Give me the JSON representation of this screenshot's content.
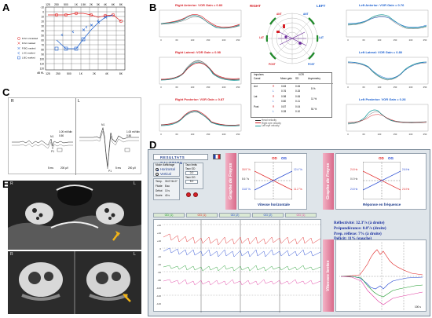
{
  "letters": {
    "a": "A",
    "b": "B",
    "c": "C",
    "d": "D",
    "e": "E"
  },
  "panel_a": {
    "freq_top": [
      "125",
      "250",
      "500",
      "1K",
      "1.5K",
      "2K",
      "3K",
      "4K",
      "6K",
      "8K"
    ],
    "freq_bottom": [
      "125",
      "250",
      "500",
      "1K",
      "2K",
      "4K",
      "8K"
    ],
    "db_left": [
      "-10",
      "0",
      "10",
      "20",
      "30",
      "40",
      "50",
      "60",
      "70",
      "80",
      "90",
      "100",
      "110",
      "120"
    ],
    "db_unit": "dB HL",
    "legend": [
      "R AC unmasked",
      "R AC masked",
      "R BC masked",
      "L AC masked",
      "L BC masked"
    ],
    "colors": {
      "right": "#e02020",
      "left": "#1a5fd0"
    }
  },
  "panel_b": {
    "right_anterior": "Right Anterior: VOR Gain = 0.83",
    "right_lateral": "Right Lateral: VOR Gain = 0.98",
    "right_posterior": "Right Posterior: VOR Gain = 0.87",
    "left_anterior": "Left Anterior: VOR Gain = 0.76",
    "left_lateral": "Left Lateral: VOR Gain = 0.80",
    "left_posterior": "Left Posterior: VOR Gain = 0.28",
    "right_word": "RIGHT",
    "left_word": "LEFT",
    "dial_labels": {
      "ant_l": "ANT",
      "ant_r": "ANT",
      "lat_l": "LAT",
      "lat_r": "LAT",
      "post_l": "POST",
      "post_r": "POST"
    },
    "table_header": [
      "Impulses",
      "VOR"
    ],
    "table_subheader": [
      "Canal",
      "Mean gain",
      "SD",
      "Asymmetry"
    ],
    "table_rows": [
      [
        "Ant",
        "R",
        "0.83",
        "0.06",
        ""
      ],
      [
        "",
        "L",
        "0.76",
        "0.15",
        "5 %"
      ],
      [
        "Lat",
        "R",
        "0.98",
        "0.06",
        ""
      ],
      [
        "",
        "L",
        "0.80",
        "0.11",
        "11 %"
      ],
      [
        "Post",
        "R",
        "0.87",
        "0.04",
        ""
      ],
      [
        "",
        "L",
        "0.28",
        "0.10",
        "51 %"
      ]
    ],
    "table_legend": [
      "Head velocity",
      "Right eye velocity",
      "Left eye velocity"
    ],
    "x_ticks": [
      "0",
      "60",
      "100",
      "150",
      "200",
      "250"
    ]
  },
  "panel_c": {
    "left_label": "R",
    "right_label": "L",
    "wave_labels": [
      "N1",
      "P1"
    ],
    "scale_left": "5 ms",
    "scale_right": "200 µV",
    "scale_left2": "5 ms",
    "scale_right2": "200 µV",
    "side_values_left": [
      "1.00 mV/div",
      "0.50"
    ],
    "side_values_right": [
      "1.00 mV/div",
      "0.50"
    ]
  },
  "panel_d": {
    "window_title": "RESULTATS CALORIQU",
    "mode_label": "Mode d'affichage",
    "mode_options": [
      "Horizontal",
      "Vertical"
    ],
    "temp_label": "Temp.",
    "temp_value": "30.0°/44.0°",
    "fluide_label": "Fluide",
    "fluide_value": "Eau",
    "debut_label": "Début",
    "debut_value": "10 s",
    "duree_label": "Durée",
    "duree_value": "40 s",
    "taux_label": "Taux limits",
    "taux_od": "Taux OD",
    "taux_od_value": "0.0",
    "taux_og": "Taux OG",
    "taux_og_value": "5.0",
    "graph1_side": "Graphe de Freyss",
    "graph1_od": "OD",
    "graph1_og": "OG",
    "graph1_left_vals": [
      "18.9 °/s",
      "8.6 °/s",
      "13.8 °/s"
    ],
    "graph1_right_vals": [
      "12.4 °/s",
      "11.2 °/s"
    ],
    "graph1_caption": "Vitesse horizontale",
    "graph2_side": "Graphe de Freyss",
    "graph2_od": "OD",
    "graph2_og": "OG",
    "graph2_left_vals": [
      "2.6 Hz",
      "0.0 Hz",
      "2.6 Hz"
    ],
    "graph2_right_vals": [
      "2.6 Hz",
      "2.6 Hz"
    ],
    "graph2_caption": "Réponse en fréquence",
    "channels": [
      "OD (1)",
      "OG (1)",
      "OD (2)",
      "OG (2)",
      "OG (1)"
    ],
    "channel_ms": [
      "30",
      "30",
      "30",
      "30",
      "30"
    ],
    "trace_y_ticks": [
      "+60",
      "+40",
      "+20",
      "0",
      "-20",
      "-40",
      "-60",
      "-80",
      "-100",
      "-120",
      "-140"
    ],
    "reflect": "Réflectivité: 32.3°/s (à droite)",
    "prepond": "Prépondérance: 0.0°/s (droite)",
    "prep_reflex": "Prep. réflexe: 7% (à droite)",
    "deficit": "Déficit: 11% (gauche)",
    "vitesses_side": "Vitesses lentes",
    "time_unit": "100 s",
    "colors": {
      "od": "#e02020",
      "og": "#1a3fd0",
      "green": "#1b9a2a",
      "pink": "#e03aa0"
    }
  },
  "panel_e": {
    "top_r": "R",
    "top_l": "L",
    "bottom_r": "R",
    "bottom_l": "L",
    "arrow_color": "#f2b417"
  }
}
